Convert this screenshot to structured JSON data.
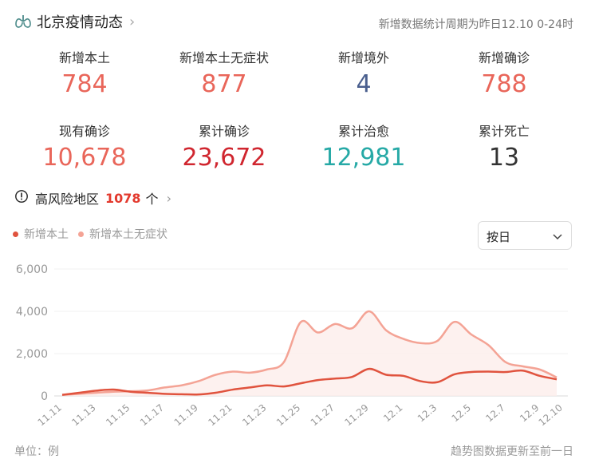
{
  "header": {
    "title": "北京疫情动态",
    "period": "新增数据统计周期为昨日12.10 0-24时"
  },
  "stats": [
    {
      "label": "新增本土",
      "value": "784",
      "color": "#e9665a"
    },
    {
      "label": "新增本土无症状",
      "value": "877",
      "color": "#e9665a"
    },
    {
      "label": "新增境外",
      "value": "4",
      "color": "#4a5f8e"
    },
    {
      "label": "新增确诊",
      "value": "788",
      "color": "#e9665a"
    },
    {
      "label": "现有确诊",
      "value": "10,678",
      "color": "#e9665a"
    },
    {
      "label": "累计确诊",
      "value": "23,672",
      "color": "#d0262f"
    },
    {
      "label": "累计治愈",
      "value": "12,981",
      "color": "#26a9a6"
    },
    {
      "label": "累计死亡",
      "value": "13",
      "color": "#333333"
    }
  ],
  "risk": {
    "label": "高风险地区",
    "count": "1078",
    "unit": "个"
  },
  "dropdown": {
    "selected": "按日"
  },
  "footer": {
    "unit_label": "单位：例",
    "note": "趋势图数据更新至前一日"
  },
  "colors": {
    "local": "#e0533e",
    "asym": "#f4a395"
  },
  "chart_data": {
    "type": "line",
    "y_ticks": [
      "0",
      "2,000",
      "4,000",
      "6,000"
    ],
    "ylim": [
      0,
      6000
    ],
    "grid": true,
    "x": [
      "11.11",
      "11.12",
      "11.13",
      "11.14",
      "11.15",
      "11.16",
      "11.17",
      "11.18",
      "11.19",
      "11.20",
      "11.21",
      "11.22",
      "11.23",
      "11.24",
      "11.25",
      "11.26",
      "11.27",
      "11.28",
      "11.29",
      "11.30",
      "12.1",
      "12.2",
      "12.3",
      "12.4",
      "12.5",
      "12.6",
      "12.7",
      "12.8",
      "12.9",
      "12.10"
    ],
    "x_tick_labels": [
      "11.11",
      "11.13",
      "11.15",
      "11.17",
      "11.19",
      "11.21",
      "11.23",
      "11.25",
      "11.27",
      "11.29",
      "12.1",
      "12.3",
      "12.5",
      "12.7",
      "12.9",
      "12.10"
    ],
    "series": [
      {
        "name": "新增本土",
        "values": [
          50,
          150,
          250,
          300,
          200,
          150,
          100,
          80,
          70,
          150,
          300,
          400,
          500,
          450,
          600,
          750,
          820,
          900,
          1280,
          1000,
          950,
          700,
          650,
          1020,
          1130,
          1150,
          1130,
          1200,
          950,
          784
        ]
      },
      {
        "name": "新增本土无症状",
        "values": [
          50,
          100,
          150,
          200,
          220,
          260,
          400,
          500,
          700,
          1000,
          1150,
          1100,
          1250,
          1600,
          3500,
          3000,
          3400,
          3200,
          4000,
          3100,
          2700,
          2500,
          2600,
          3500,
          2900,
          2400,
          1600,
          1400,
          1250,
          877
        ]
      }
    ]
  }
}
